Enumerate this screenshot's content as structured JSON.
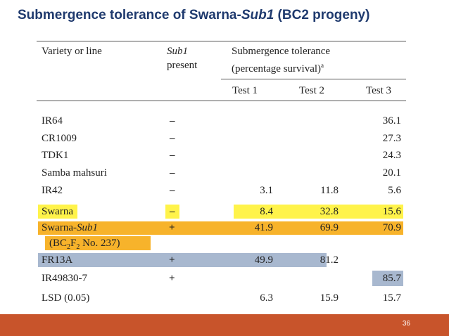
{
  "title": {
    "prefix": "Submergence tolerance of Swarna-",
    "italic": "Sub1",
    "suffix": " (BC2 progeny)"
  },
  "table": {
    "headers": {
      "variety": "Variety or line",
      "sub1_line1": "Sub1",
      "sub1_line2": "present",
      "group_line1": "Submergence tolerance",
      "group_line2": "(percentage survival)",
      "group_sup": "a",
      "test1": "Test 1",
      "test2": "Test 2",
      "test3": "Test 3"
    },
    "rows": [
      {
        "name": "IR64",
        "sub1": "–",
        "t1": "",
        "t2": "",
        "t3": "36.1"
      },
      {
        "name": "CR1009",
        "sub1": "–",
        "t1": "",
        "t2": "",
        "t3": "27.3"
      },
      {
        "name": "TDK1",
        "sub1": "–",
        "t1": "",
        "t2": "",
        "t3": "24.3"
      },
      {
        "name": "Samba mahsuri",
        "sub1": "–",
        "t1": "",
        "t2": "",
        "t3": "20.1"
      },
      {
        "name": "IR42",
        "sub1": "–",
        "t1": "3.1",
        "t2": "11.8",
        "t3": "5.6"
      },
      {
        "name": "Swarna",
        "sub1": "–",
        "t1": "8.4",
        "t2": "32.8",
        "t3": "15.6"
      },
      {
        "name_prefix": "Swarna-",
        "name_italic": "Sub1",
        "sub_note_a": "(BC",
        "sub_note_b": "2",
        "sub_note_c": "F",
        "sub_note_d": "2",
        "sub_note_e": " No. 237)",
        "sub1": "+",
        "t1": "41.9",
        "t2": "69.9",
        "t3": "70.9"
      },
      {
        "name": "FR13A",
        "sub1": "+",
        "t1": "49.9",
        "t2": "81.2",
        "t3": ""
      },
      {
        "name": "IR49830-7",
        "sub1": "+",
        "t1": "",
        "t2": "",
        "t3": "85.7"
      },
      {
        "name": "LSD (0.05)",
        "sub1": "",
        "t1": "6.3",
        "t2": "15.9",
        "t3": "15.7"
      }
    ]
  },
  "colors": {
    "title": "#1f3a6e",
    "yellow_highlight": "#fff34a",
    "orange_highlight": "#f7b32b",
    "blue_highlight": "#a8b8cf",
    "footer": "#c8542b"
  },
  "footer": {
    "page_number": "36"
  }
}
